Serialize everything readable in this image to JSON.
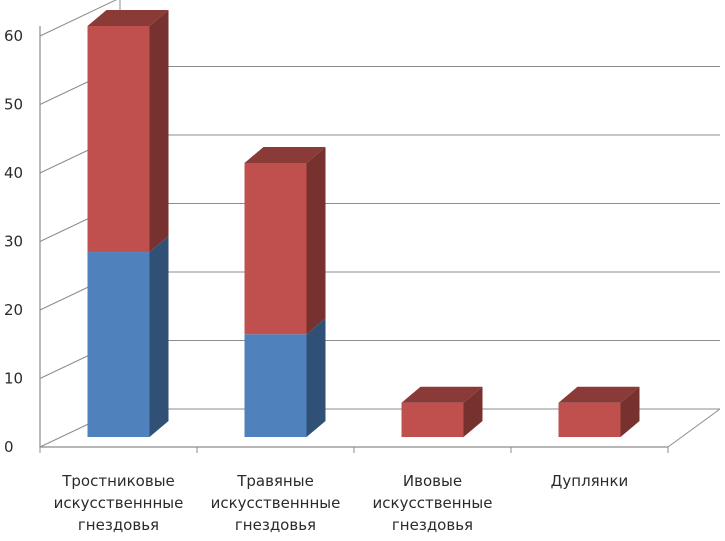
{
  "chart_data": {
    "type": "bar",
    "stacked": true,
    "three_d": true,
    "categories": [
      [
        "Тростниковые",
        "искусственнные",
        "гнездовья"
      ],
      [
        "Травяные",
        "искусственнные",
        "гнездовья"
      ],
      [
        "Ивовые",
        "искусственные",
        "гнездовья"
      ],
      [
        "Дуплянки"
      ]
    ],
    "series": [
      {
        "values": [
          27,
          15,
          0,
          0
        ],
        "color": "#4f81bd"
      },
      {
        "values": [
          33,
          25,
          5,
          5
        ],
        "color": "#c0504d"
      }
    ],
    "ylim": [
      0,
      60
    ],
    "yticks": [
      "0",
      "10",
      "20",
      "30",
      "40",
      "50",
      "60"
    ],
    "grid": true,
    "legend": "none"
  }
}
